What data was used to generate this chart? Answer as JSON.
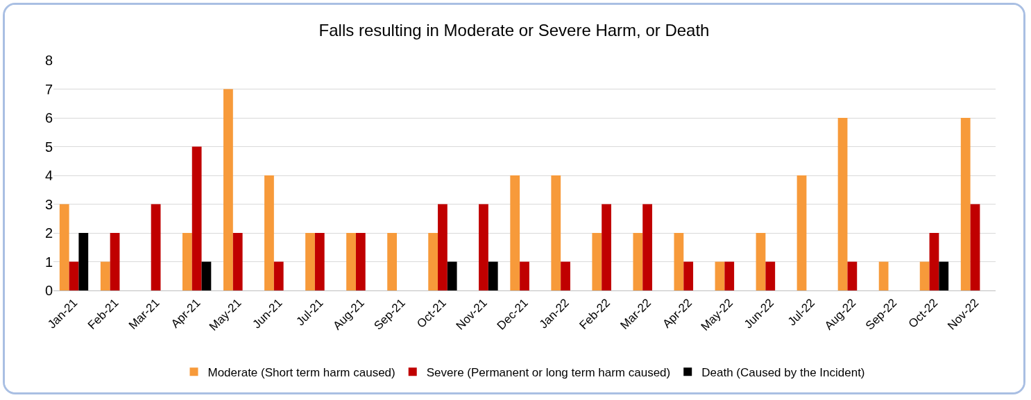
{
  "chart_data": {
    "type": "bar",
    "title": "Falls resulting in Moderate or Severe Harm, or Death",
    "categories": [
      "Jan-21",
      "Feb-21",
      "Mar-21",
      "Apr-21",
      "May-21",
      "Jun-21",
      "Jul-21",
      "Aug-21",
      "Sep-21",
      "Oct-21",
      "Nov-21",
      "Dec-21",
      "Jan-22",
      "Feb-22",
      "Mar-22",
      "Apr-22",
      "May-22",
      "Jun-22",
      "Jul-22",
      "Aug-22",
      "Sep-22",
      "Oct-22",
      "Nov-22"
    ],
    "series": [
      {
        "name": "Moderate (Short term harm caused)",
        "color": "#f79a3a",
        "values": [
          3,
          1,
          0,
          2,
          7,
          4,
          2,
          2,
          2,
          2,
          0,
          4,
          4,
          2,
          2,
          2,
          1,
          2,
          4,
          6,
          1,
          1,
          6
        ]
      },
      {
        "name": "Severe (Permanent or long term harm caused)",
        "color": "#c00000",
        "values": [
          1,
          2,
          3,
          5,
          2,
          1,
          2,
          2,
          0,
          3,
          3,
          1,
          1,
          3,
          3,
          1,
          1,
          1,
          0,
          1,
          0,
          2,
          3
        ]
      },
      {
        "name": "Death (Caused by the Incident)",
        "color": "#000000",
        "values": [
          2,
          0,
          0,
          1,
          0,
          0,
          0,
          0,
          0,
          1,
          1,
          0,
          0,
          0,
          0,
          0,
          0,
          0,
          0,
          0,
          0,
          1,
          0
        ]
      }
    ],
    "ylim": [
      0,
      8
    ],
    "yticks": [
      0,
      1,
      2,
      3,
      4,
      5,
      6,
      7,
      8
    ],
    "grid": "y",
    "legend": "bottom"
  }
}
